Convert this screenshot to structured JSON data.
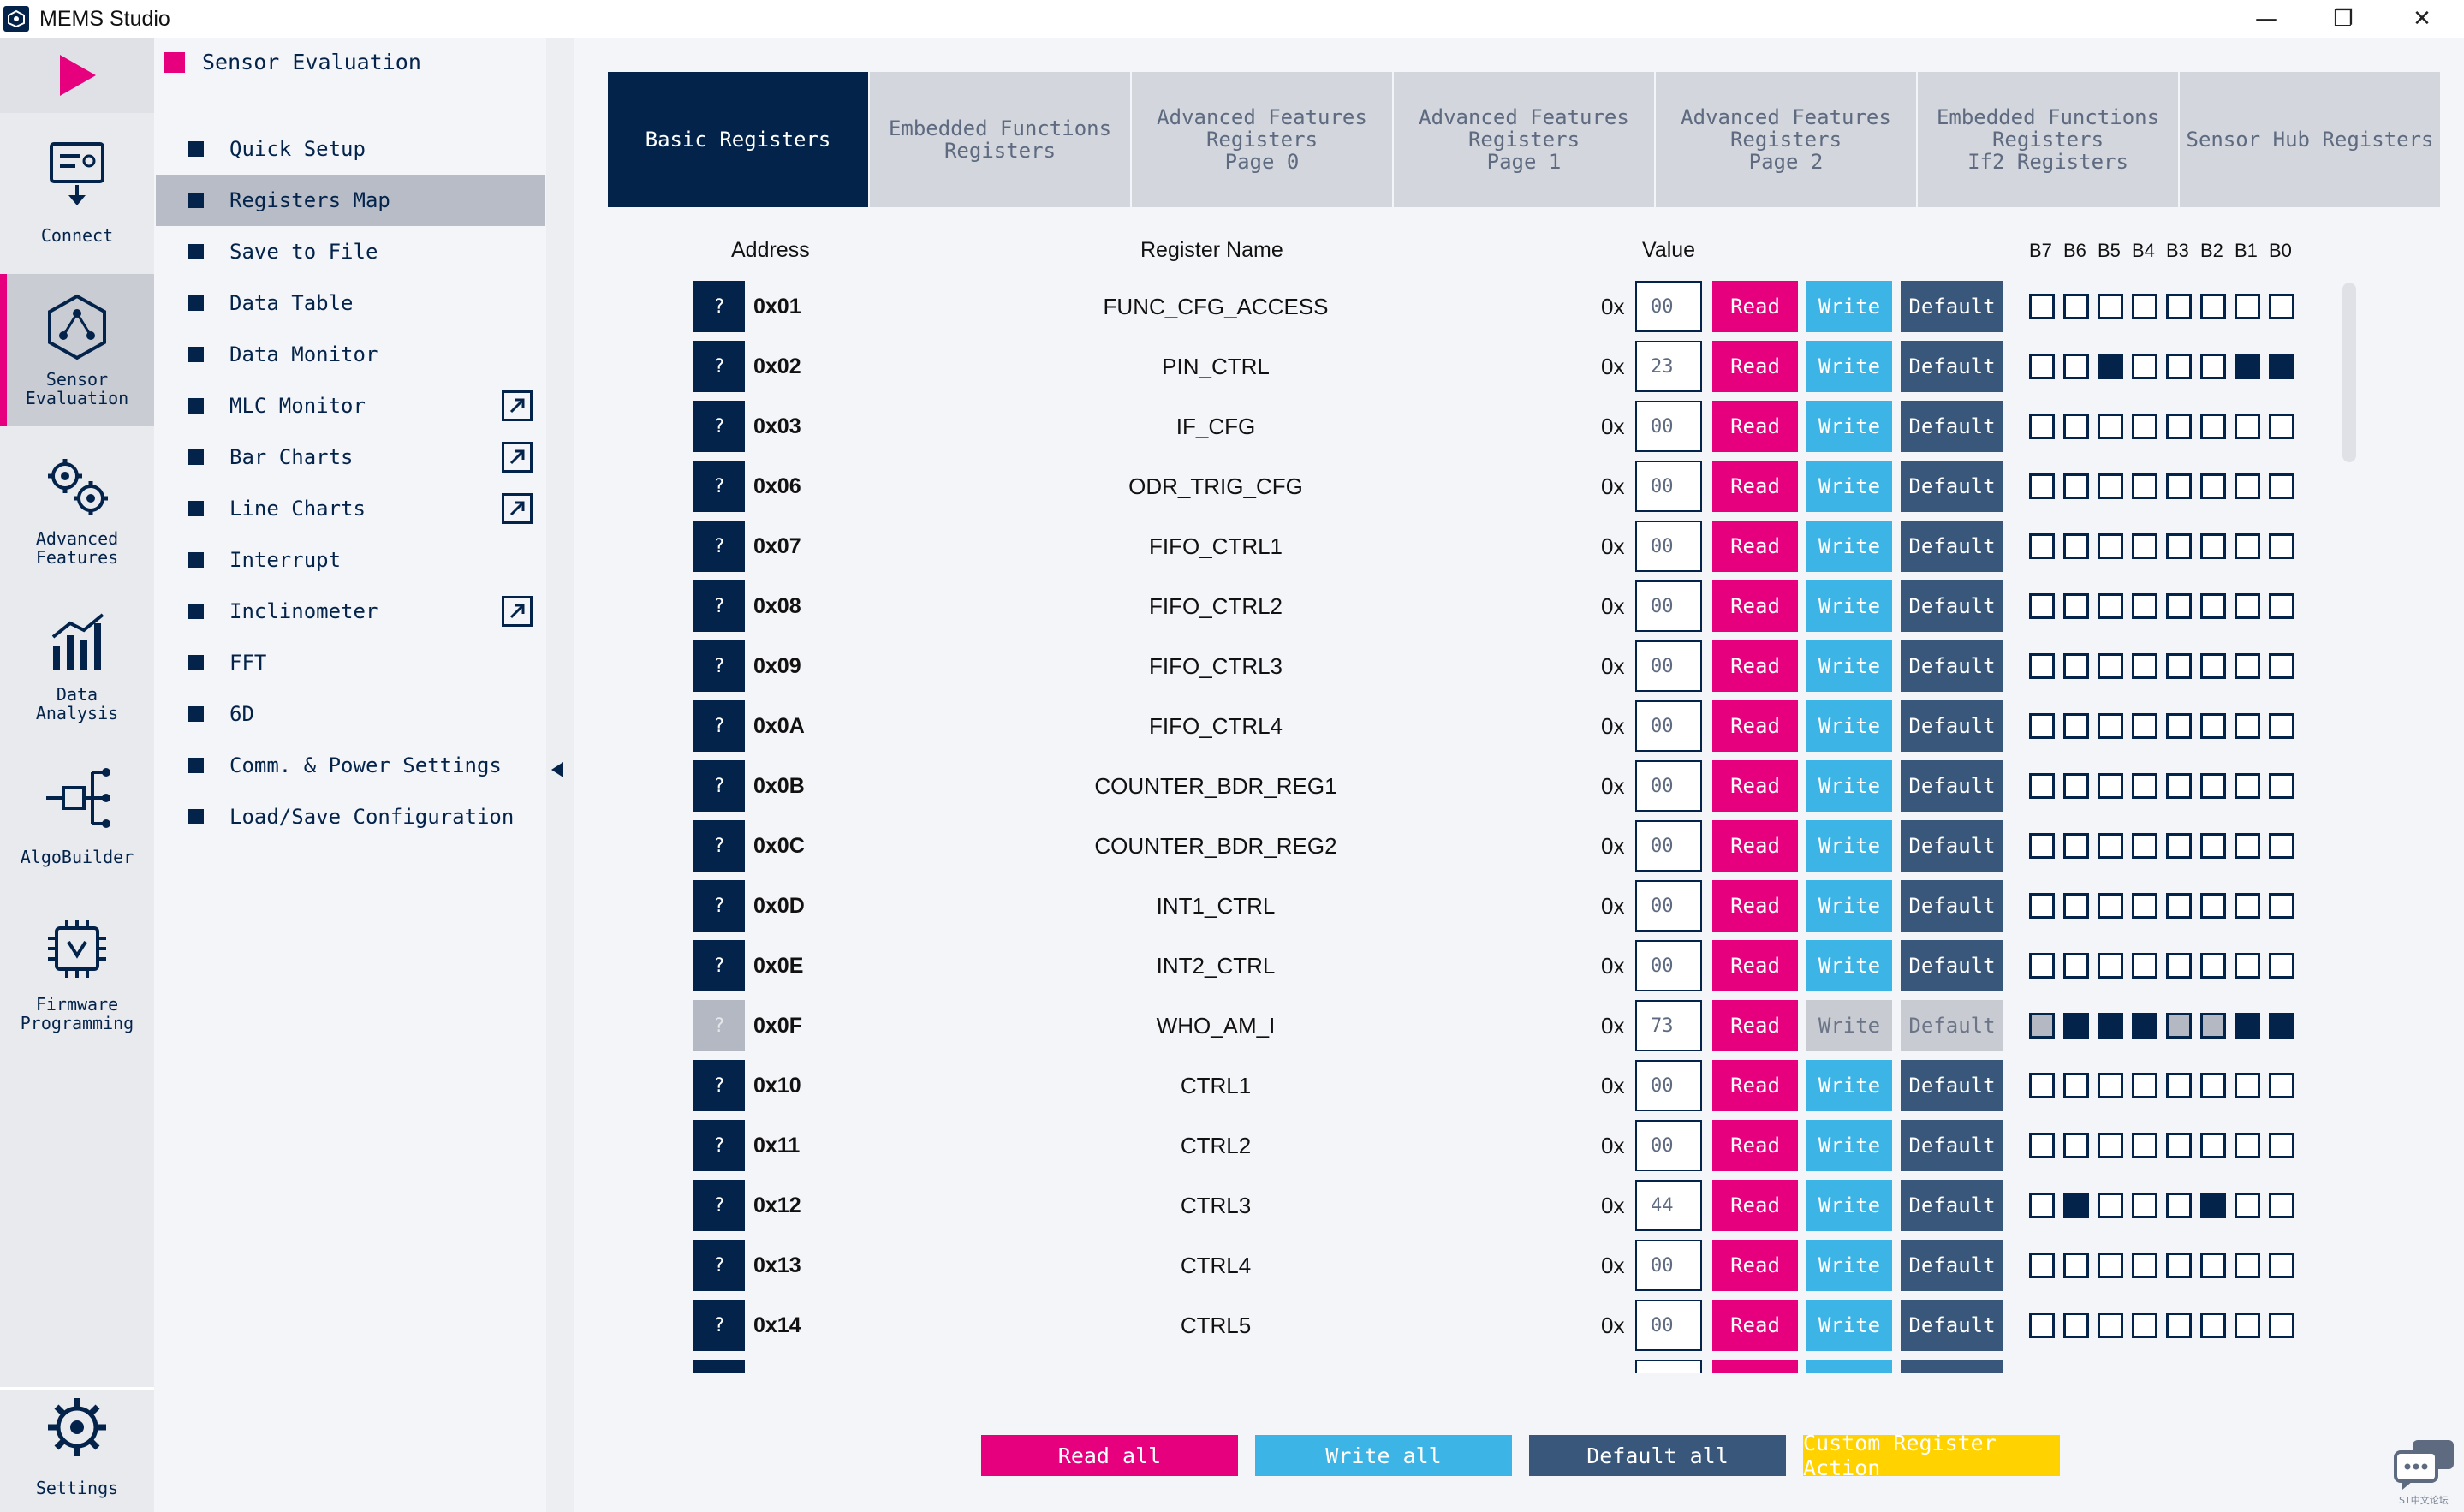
{
  "app": {
    "title": "MEMS Studio"
  },
  "window_controls": {
    "minimize": "—",
    "maximize": "❐",
    "close": "✕"
  },
  "rail": [
    {
      "id": "connect",
      "label": "Connect"
    },
    {
      "id": "sensor-evaluation",
      "label": "Sensor\nEvaluation",
      "active": true
    },
    {
      "id": "advanced-features",
      "label": "Advanced\nFeatures"
    },
    {
      "id": "data-analysis",
      "label": "Data\nAnalysis"
    },
    {
      "id": "algobuilder",
      "label": "AlgoBuilder"
    },
    {
      "id": "firmware-programming",
      "label": "Firmware\nProgramming"
    },
    {
      "id": "settings",
      "label": "Settings"
    }
  ],
  "submenu": {
    "header": "Sensor Evaluation",
    "items": [
      {
        "label": "Quick Setup"
      },
      {
        "label": "Registers Map",
        "active": true
      },
      {
        "label": "Save to File"
      },
      {
        "label": "Data Table"
      },
      {
        "label": "Data Monitor"
      },
      {
        "label": "MLC Monitor",
        "external": true
      },
      {
        "label": "Bar Charts",
        "external": true
      },
      {
        "label": "Line Charts",
        "external": true
      },
      {
        "label": "Interrupt"
      },
      {
        "label": "Inclinometer",
        "external": true
      },
      {
        "label": "FFT"
      },
      {
        "label": "6D"
      },
      {
        "label": "Comm. & Power Settings"
      },
      {
        "label": "Load/Save Configuration"
      }
    ]
  },
  "tabs": [
    {
      "label": "Basic Registers",
      "active": true
    },
    {
      "label": "Embedded Functions\nRegisters"
    },
    {
      "label": "Advanced Features\nRegisters\nPage 0"
    },
    {
      "label": "Advanced Features\nRegisters\nPage 1"
    },
    {
      "label": "Advanced Features\nRegisters\nPage 2"
    },
    {
      "label": "Embedded Functions\nRegisters\nIf2 Registers"
    },
    {
      "label": "Sensor Hub Registers"
    }
  ],
  "columns": {
    "address": "Address",
    "register_name": "Register Name",
    "value": "Value"
  },
  "bit_labels": [
    "B7",
    "B6",
    "B5",
    "B4",
    "B3",
    "B2",
    "B1",
    "B0"
  ],
  "row_labels": {
    "help": "?",
    "hex_prefix": "0x",
    "read": "Read",
    "write": "Write",
    "default": "Default"
  },
  "registers": [
    {
      "address": "0x01",
      "name": "FUNC_CFG_ACCESS",
      "value": "00"
    },
    {
      "address": "0x02",
      "name": "PIN_CTRL",
      "value": "23"
    },
    {
      "address": "0x03",
      "name": "IF_CFG",
      "value": "00"
    },
    {
      "address": "0x06",
      "name": "ODR_TRIG_CFG",
      "value": "00"
    },
    {
      "address": "0x07",
      "name": "FIFO_CTRL1",
      "value": "00"
    },
    {
      "address": "0x08",
      "name": "FIFO_CTRL2",
      "value": "00"
    },
    {
      "address": "0x09",
      "name": "FIFO_CTRL3",
      "value": "00"
    },
    {
      "address": "0x0A",
      "name": "FIFO_CTRL4",
      "value": "00"
    },
    {
      "address": "0x0B",
      "name": "COUNTER_BDR_REG1",
      "value": "00"
    },
    {
      "address": "0x0C",
      "name": "COUNTER_BDR_REG2",
      "value": "00"
    },
    {
      "address": "0x0D",
      "name": "INT1_CTRL",
      "value": "00"
    },
    {
      "address": "0x0E",
      "name": "INT2_CTRL",
      "value": "00"
    },
    {
      "address": "0x0F",
      "name": "WHO_AM_I",
      "value": "73",
      "read_only": true
    },
    {
      "address": "0x10",
      "name": "CTRL1",
      "value": "00"
    },
    {
      "address": "0x11",
      "name": "CTRL2",
      "value": "00"
    },
    {
      "address": "0x12",
      "name": "CTRL3",
      "value": "44"
    },
    {
      "address": "0x13",
      "name": "CTRL4",
      "value": "00"
    },
    {
      "address": "0x14",
      "name": "CTRL5",
      "value": "00"
    }
  ],
  "bottom_actions": {
    "read_all": "Read all",
    "write_all": "Write all",
    "default_all": "Default all",
    "custom": "Custom Register Action"
  },
  "watermark": "ST中文论坛",
  "colors": {
    "navy": "#03234b",
    "magenta": "#e6007e",
    "light_blue": "#3cb4e6",
    "slate": "#39577a",
    "yellow": "#ffd200"
  }
}
